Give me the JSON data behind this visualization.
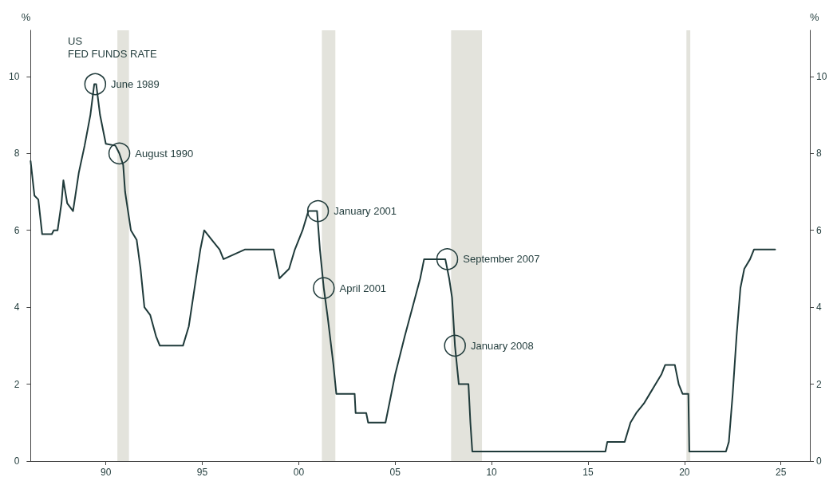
{
  "chart_data": {
    "type": "line",
    "title": "US\nFED FUNDS RATE",
    "ylabel": "%",
    "y2label": "%",
    "x": [
      1986.1,
      1986.3,
      1986.5,
      1986.7,
      1987.2,
      1987.3,
      1987.5,
      1987.7,
      1987.8,
      1988.0,
      1988.3,
      1988.6,
      1988.9,
      1989.2,
      1989.4,
      1989.5,
      1989.7,
      1989.9,
      1990.0,
      1990.5,
      1990.7,
      1990.9,
      1991.0,
      1991.3,
      1991.6,
      1991.8,
      1992.0,
      1992.3,
      1992.6,
      1992.8,
      1994.0,
      1994.3,
      1994.6,
      1994.9,
      1995.1,
      1995.5,
      1995.9,
      1996.1,
      1997.2,
      1998.7,
      1998.9,
      1999.0,
      1999.5,
      1999.8,
      2000.2,
      2000.5,
      2000.95,
      2001.1,
      2001.3,
      2001.5,
      2001.8,
      2001.95,
      2002.9,
      2002.95,
      2003.5,
      2003.6,
      2004.5,
      2004.7,
      2005.0,
      2005.5,
      2005.9,
      2006.3,
      2006.5,
      2007.6,
      2007.8,
      2007.95,
      2008.1,
      2008.3,
      2008.8,
      2008.9,
      2009.0,
      2015.9,
      2016.0,
      2016.9,
      2017.2,
      2017.5,
      2017.9,
      2018.2,
      2018.5,
      2018.8,
      2019.0,
      2019.5,
      2019.7,
      2019.9,
      2020.2,
      2020.25,
      2022.15,
      2022.3,
      2022.5,
      2022.7,
      2022.9,
      2023.1,
      2023.4,
      2023.6,
      2024.7
    ],
    "series": [
      {
        "color": "#1f3a3a",
        "values": [
          7.8,
          6.9,
          6.8,
          5.9,
          5.9,
          6.0,
          6.0,
          6.7,
          7.3,
          6.7,
          6.5,
          7.5,
          8.2,
          9.0,
          9.8,
          9.8,
          9.0,
          8.5,
          8.25,
          8.2,
          8.0,
          7.7,
          7.0,
          6.0,
          5.75,
          5.0,
          4.0,
          3.8,
          3.25,
          3.0,
          3.0,
          3.5,
          4.5,
          5.5,
          6.0,
          5.75,
          5.5,
          5.25,
          5.5,
          5.5,
          5.0,
          4.75,
          5.0,
          5.5,
          6.0,
          6.5,
          6.5,
          5.5,
          4.5,
          3.75,
          2.5,
          1.75,
          1.75,
          1.25,
          1.25,
          1.0,
          1.0,
          1.5,
          2.25,
          3.25,
          4.0,
          4.75,
          5.25,
          5.25,
          4.75,
          4.25,
          3.0,
          2.0,
          2.0,
          1.0,
          0.25,
          0.25,
          0.5,
          0.5,
          1.0,
          1.25,
          1.5,
          1.75,
          2.0,
          2.25,
          2.5,
          2.5,
          2.0,
          1.75,
          1.75,
          0.25,
          0.25,
          0.5,
          1.75,
          3.25,
          4.5,
          5.0,
          5.25,
          5.5,
          5.5
        ]
      }
    ],
    "xlim": [
      1986.1,
      2026.5
    ],
    "xticks": [
      {
        "value": 1990,
        "label": "90"
      },
      {
        "value": 1995,
        "label": "95"
      },
      {
        "value": 2000,
        "label": "00"
      },
      {
        "value": 2005,
        "label": "05"
      },
      {
        "value": 2010,
        "label": "10"
      },
      {
        "value": 2015,
        "label": "15"
      },
      {
        "value": 2020,
        "label": "20"
      },
      {
        "value": 2025,
        "label": "25"
      }
    ],
    "ylim": [
      0,
      11.2
    ],
    "yticks": [
      0,
      2,
      4,
      6,
      8,
      10
    ],
    "y2lim": [
      0,
      11.2
    ],
    "y2ticks": [
      0,
      2,
      4,
      6,
      8,
      10
    ],
    "grid": false,
    "marker": "none",
    "line_style": "solid",
    "bands": [
      {
        "axis": "x",
        "from": 1990.6,
        "to": 1991.2,
        "color": "#e3e3dc"
      },
      {
        "axis": "x",
        "from": 2001.2,
        "to": 2001.9,
        "color": "#e3e3dc"
      },
      {
        "axis": "x",
        "from": 2007.9,
        "to": 2009.5,
        "color": "#e3e3dc"
      },
      {
        "axis": "x",
        "from": 2020.1,
        "to": 2020.3,
        "color": "#e3e3dc"
      }
    ],
    "annotations": [
      {
        "text": "June 1989",
        "x": 1989.45,
        "y": 9.8
      },
      {
        "text": "August 1990",
        "x": 1990.7,
        "y": 8.0
      },
      {
        "text": "January 2001",
        "x": 2001.0,
        "y": 6.5
      },
      {
        "text": "April 2001",
        "x": 2001.3,
        "y": 4.5
      },
      {
        "text": "September 2007",
        "x": 2007.7,
        "y": 5.25
      },
      {
        "text": "January 2008",
        "x": 2008.1,
        "y": 3.0
      }
    ]
  }
}
